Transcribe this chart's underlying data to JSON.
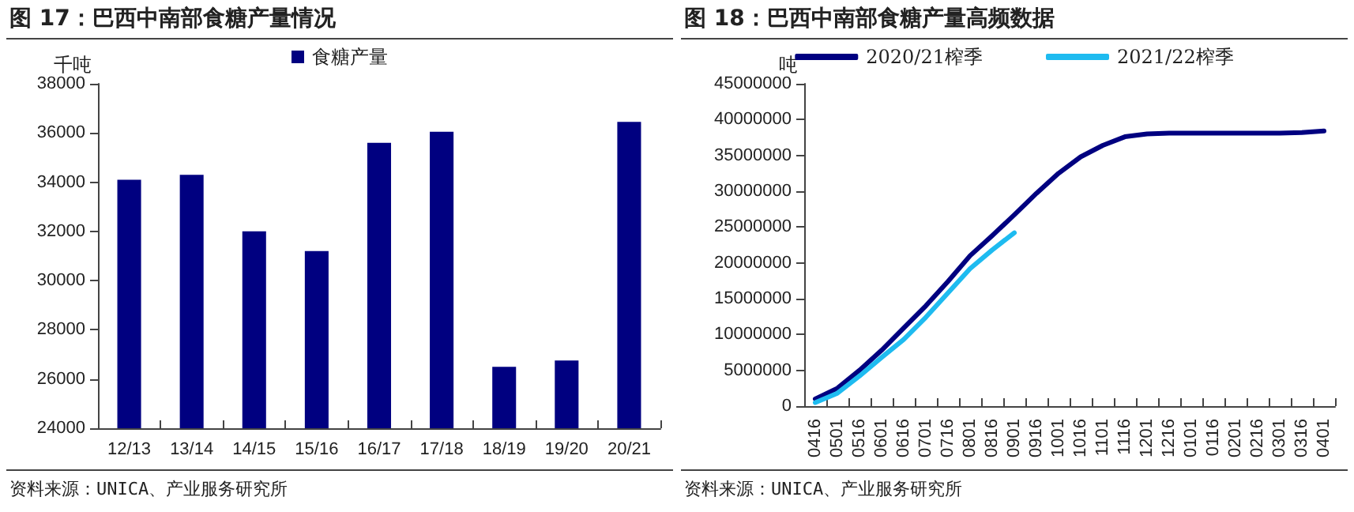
{
  "chart_data": [
    {
      "type": "bar",
      "title": "图 17：巴西中南部食糖产量情况",
      "ylabel": "千吨",
      "categories": [
        "12/13",
        "13/14",
        "14/15",
        "15/16",
        "16/17",
        "17/18",
        "18/19",
        "19/20",
        "20/21"
      ],
      "series": [
        {
          "name": "食糖产量",
          "color": "#000080",
          "values": [
            34100,
            34300,
            32000,
            31200,
            35600,
            36050,
            26500,
            26750,
            36450
          ]
        }
      ],
      "ylim": [
        24000,
        38000
      ],
      "yticks": [
        24000,
        26000,
        28000,
        30000,
        32000,
        34000,
        36000,
        38000
      ],
      "grid": false,
      "legend": "top",
      "annotations": [
        "资料来源：UNICA、产业服务研究所"
      ]
    },
    {
      "type": "line",
      "title": "图 18：巴西中南部食糖产量高频数据",
      "ylabel": "吨",
      "categories": [
        "0416",
        "0501",
        "0516",
        "0601",
        "0616",
        "0701",
        "0716",
        "0801",
        "0816",
        "0901",
        "0916",
        "1001",
        "1016",
        "1101",
        "1116",
        "1201",
        "1216",
        "0101",
        "0116",
        "0201",
        "0216",
        "0301",
        "0316",
        "0401"
      ],
      "series": [
        {
          "name": "2020/21榨季",
          "color": "#000080",
          "values": [
            1000000,
            2500000,
            5000000,
            7800000,
            10900000,
            14000000,
            17400000,
            21000000,
            23800000,
            26700000,
            29700000,
            32500000,
            34800000,
            36400000,
            37600000,
            38000000,
            38100000,
            38100000,
            38100000,
            38100000,
            38100000,
            38100000,
            38200000,
            38400000
          ]
        },
        {
          "name": "2021/22榨季",
          "color": "#1ebbf0",
          "values": [
            500000,
            1800000,
            4200000,
            6800000,
            9300000,
            12400000,
            15800000,
            19200000,
            21800000,
            24200000,
            null,
            null,
            null,
            null,
            null,
            null,
            null,
            null,
            null,
            null,
            null,
            null,
            null,
            null
          ]
        }
      ],
      "ylim": [
        0,
        45000000
      ],
      "yticks": [
        0,
        5000000,
        10000000,
        15000000,
        20000000,
        25000000,
        30000000,
        35000000,
        40000000,
        45000000
      ],
      "grid": false,
      "legend": "top",
      "marker": "none",
      "line_style": "solid",
      "annotations": [
        "资料来源：UNICA、产业服务研究所"
      ]
    }
  ]
}
